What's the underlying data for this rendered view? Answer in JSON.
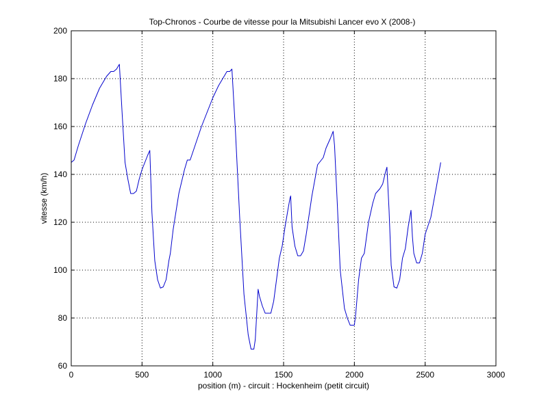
{
  "chart_data": {
    "type": "line",
    "title": "Top-Chronos - Courbe de vitesse pour la Mitsubishi Lancer evo X (2008-)",
    "xlabel": "position (m) - circuit : Hockenheim (petit circuit)",
    "ylabel": "vitesse (km/h)",
    "xlim": [
      0,
      3000
    ],
    "ylim": [
      60,
      200
    ],
    "x_ticks": [
      0,
      500,
      1000,
      1500,
      2000,
      2500,
      3000
    ],
    "y_ticks": [
      60,
      80,
      100,
      120,
      140,
      160,
      180,
      200
    ],
    "grid": true,
    "grid_style": "dotted",
    "line_color": "#0000cc",
    "series": [
      {
        "x": [
          0,
          20,
          50,
          100,
          150,
          200,
          250,
          280,
          300,
          320,
          340,
          360,
          380,
          400,
          420,
          440,
          460,
          480,
          500,
          520,
          540,
          555,
          570,
          590,
          610,
          630,
          650,
          670,
          690,
          700,
          720,
          760,
          800,
          820,
          840,
          880,
          920,
          960,
          1000,
          1040,
          1080,
          1100,
          1120,
          1135,
          1160,
          1190,
          1220,
          1250,
          1270,
          1290,
          1300,
          1320,
          1330,
          1350,
          1370,
          1390,
          1410,
          1430,
          1450,
          1470,
          1490,
          1510,
          1530,
          1545,
          1550,
          1560,
          1580,
          1600,
          1620,
          1640,
          1660,
          1700,
          1740,
          1780,
          1800,
          1830,
          1850,
          1860,
          1880,
          1900,
          1930,
          1950,
          1970,
          1980,
          2000,
          2010,
          2030,
          2050,
          2070,
          2100,
          2130,
          2150,
          2180,
          2200,
          2220,
          2230,
          2245,
          2260,
          2280,
          2300,
          2320,
          2340,
          2360,
          2380,
          2400,
          2410,
          2420,
          2440,
          2460,
          2480,
          2500,
          2540,
          2580,
          2610
        ],
        "y": [
          145,
          146,
          152,
          161,
          169,
          176,
          181,
          183,
          183,
          184,
          186,
          165,
          145,
          138,
          132,
          132,
          133,
          138,
          142,
          145,
          148,
          150,
          124,
          104,
          96,
          92.5,
          93,
          96,
          104,
          107,
          117,
          132,
          142,
          146,
          146,
          153,
          160,
          166,
          172,
          177,
          181,
          183,
          183,
          184,
          158,
          122,
          90,
          73,
          67,
          67,
          71,
          92,
          89,
          85,
          82,
          82,
          82,
          87,
          96,
          105,
          110,
          118,
          125,
          130,
          131,
          118,
          110,
          106,
          106,
          108,
          115,
          131,
          144,
          147,
          151,
          155,
          158,
          152,
          127,
          100,
          84,
          80,
          77,
          77,
          77,
          82,
          96,
          105,
          107,
          120,
          128,
          132,
          134,
          136,
          141,
          143,
          125,
          102,
          93,
          92.5,
          96,
          105,
          109,
          118,
          125,
          114,
          107,
          103,
          103,
          107,
          115,
          122,
          135,
          145
        ]
      }
    ]
  }
}
